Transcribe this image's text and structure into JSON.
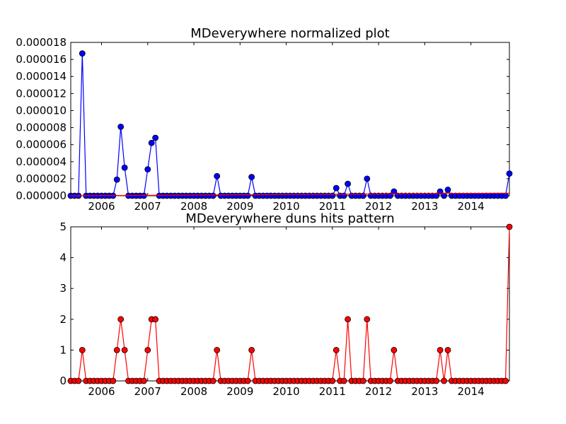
{
  "chart_data": [
    {
      "type": "line",
      "title": "MDeverywhere normalized plot",
      "xlabel": "",
      "ylabel": "",
      "x_start": "2005-05",
      "x_end": "2014-11",
      "xlim": [
        "2005-05",
        "2014-11"
      ],
      "ylim": [
        0,
        1.8e-05
      ],
      "x_tick_labels": [
        "2006",
        "2007",
        "2008",
        "2009",
        "2010",
        "2011",
        "2012",
        "2013",
        "2014"
      ],
      "y_tick_labels": [
        "0.000000",
        "0.000002",
        "0.000004",
        "0.000006",
        "0.000008",
        "0.000010",
        "0.000012",
        "0.000014",
        "0.000016",
        "0.000018"
      ],
      "grid": false,
      "series": [
        {
          "color": "#0000ff",
          "marker": "circle",
          "points": [
            {
              "x": "2005-08",
              "y": 1.67e-05
            },
            {
              "x": "2006-05",
              "y": 1.9e-06
            },
            {
              "x": "2006-06",
              "y": 8.1e-06
            },
            {
              "x": "2006-07",
              "y": 3.3e-06
            },
            {
              "x": "2007-01",
              "y": 3.1e-06
            },
            {
              "x": "2007-02",
              "y": 6.2e-06
            },
            {
              "x": "2007-03",
              "y": 6.8e-06
            },
            {
              "x": "2008-07",
              "y": 2.3e-06
            },
            {
              "x": "2009-04",
              "y": 2.2e-06
            },
            {
              "x": "2011-02",
              "y": 9e-07
            },
            {
              "x": "2011-05",
              "y": 1.4e-06
            },
            {
              "x": "2011-10",
              "y": 2e-06
            },
            {
              "x": "2012-05",
              "y": 5e-07
            },
            {
              "x": "2013-05",
              "y": 5e-07
            },
            {
              "x": "2013-07",
              "y": 7e-07
            },
            {
              "x": "2014-11",
              "y": 2.6e-06
            }
          ]
        },
        {
          "color": "#ff0000",
          "marker": "none",
          "points": [
            {
              "x": "2005-05",
              "y": 0.0
            },
            {
              "x": "2014-11",
              "y": 3e-07
            }
          ]
        }
      ]
    },
    {
      "type": "line",
      "title": "MDeverywhere duns hits pattern",
      "xlabel": "",
      "ylabel": "",
      "x_start": "2005-05",
      "x_end": "2014-11",
      "xlim": [
        "2005-05",
        "2014-11"
      ],
      "ylim": [
        0,
        5
      ],
      "x_tick_labels": [
        "2006",
        "2007",
        "2008",
        "2009",
        "2010",
        "2011",
        "2012",
        "2013",
        "2014"
      ],
      "y_tick_labels": [
        "0",
        "1",
        "2",
        "3",
        "4",
        "5"
      ],
      "grid": false,
      "series": [
        {
          "color": "#ff0000",
          "marker": "circle",
          "points": [
            {
              "x": "2005-08",
              "y": 1
            },
            {
              "x": "2006-05",
              "y": 1
            },
            {
              "x": "2006-06",
              "y": 2
            },
            {
              "x": "2006-07",
              "y": 1
            },
            {
              "x": "2007-01",
              "y": 1
            },
            {
              "x": "2007-02",
              "y": 2
            },
            {
              "x": "2007-03",
              "y": 2
            },
            {
              "x": "2008-07",
              "y": 1
            },
            {
              "x": "2009-04",
              "y": 1
            },
            {
              "x": "2011-02",
              "y": 1
            },
            {
              "x": "2011-05",
              "y": 2
            },
            {
              "x": "2011-10",
              "y": 2
            },
            {
              "x": "2012-05",
              "y": 1
            },
            {
              "x": "2013-05",
              "y": 1
            },
            {
              "x": "2013-07",
              "y": 1
            },
            {
              "x": "2014-11",
              "y": 5
            }
          ]
        }
      ]
    }
  ]
}
